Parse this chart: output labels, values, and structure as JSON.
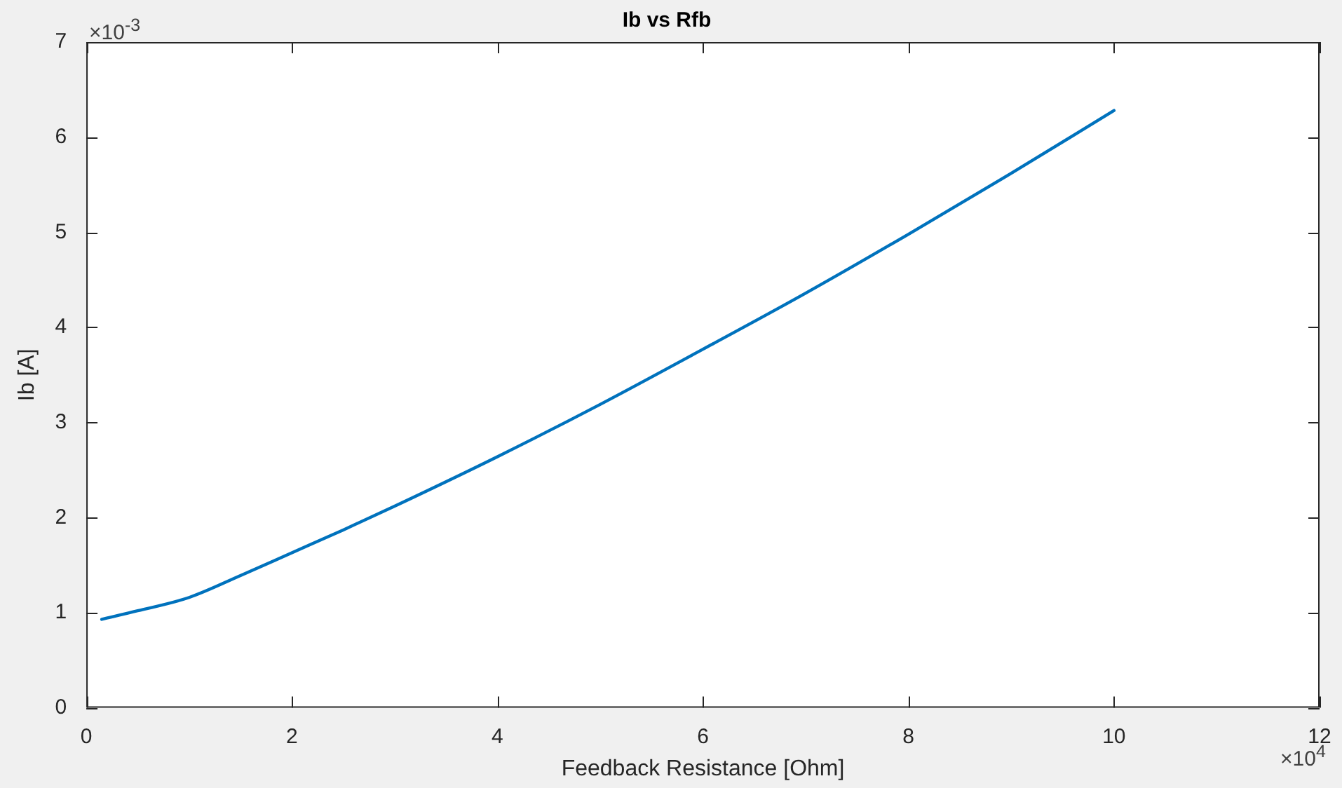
{
  "chart_data": {
    "type": "line",
    "title": "Ib vs Rfb",
    "xlabel": "Feedback Resistance [Ohm]",
    "ylabel": "Ib [A]",
    "x": [
      0.15,
      0.5,
      1,
      1.5,
      2,
      2.5,
      3,
      4,
      5,
      6,
      7,
      8,
      9,
      10
    ],
    "series": [
      {
        "color": "#0072bd",
        "values": [
          0.93,
          1.02,
          1.16,
          1.39,
          1.63,
          1.87,
          2.12,
          2.64,
          3.19,
          3.77,
          4.36,
          4.98,
          5.62,
          6.28
        ]
      }
    ],
    "xlim": [
      0,
      12
    ],
    "ylim": [
      0,
      7
    ],
    "xticks": [
      0,
      2,
      4,
      6,
      8,
      10,
      12
    ],
    "yticks": [
      0,
      1,
      2,
      3,
      4,
      5,
      6,
      7
    ],
    "annotations": [
      "×10$^{-3}$",
      "×10$^{4}$"
    ],
    "grid": false,
    "legend": false,
    "marker": "none",
    "line_style": "solid"
  }
}
